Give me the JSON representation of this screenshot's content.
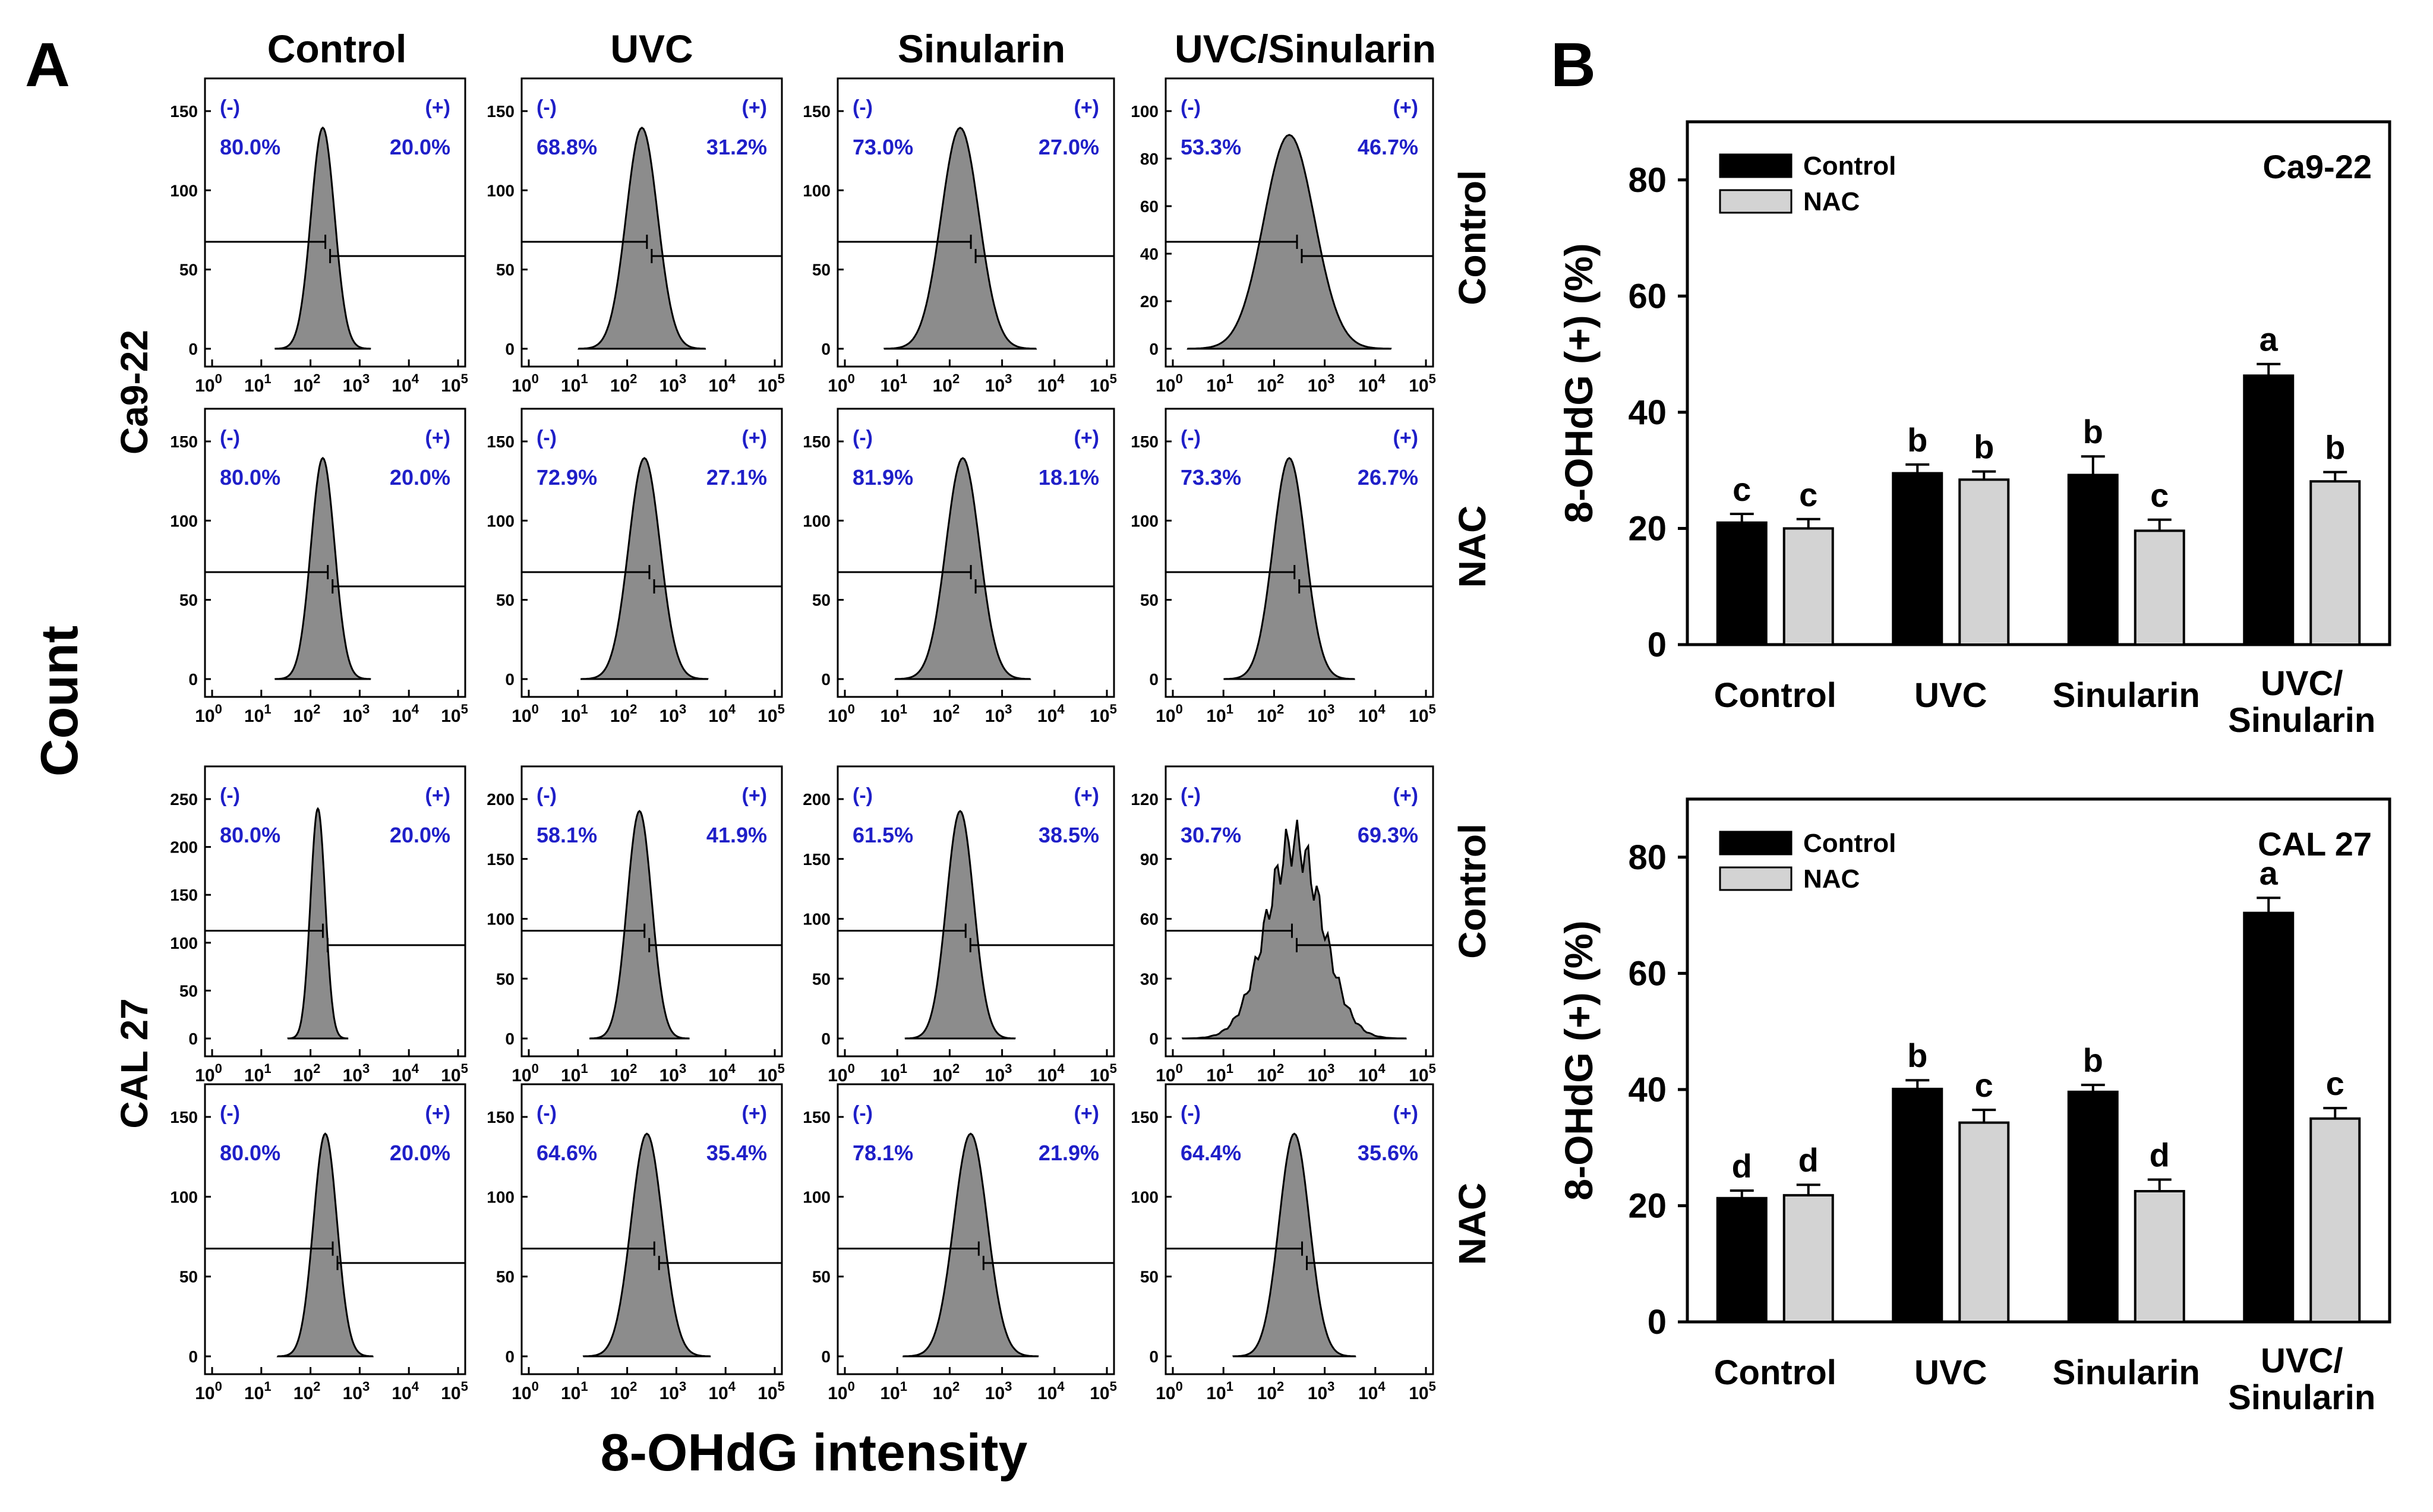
{
  "panel_labels": {
    "a": "A",
    "b": "B"
  },
  "panel_a": {
    "column_headers": [
      "Control",
      "UVC",
      "Sinularin",
      "UVC/Sinularin"
    ],
    "cell_line_labels": [
      "Ca9-22",
      "CAL 27"
    ],
    "row_side_labels": [
      "Control",
      "NAC",
      "Control",
      "NAC"
    ],
    "y_axis_label": "Count",
    "x_axis_label": "8-OHdG intensity",
    "gate_negative_label": "(-)",
    "gate_positive_label": "(+)",
    "x_tick_labels": [
      "10^0",
      "10^1",
      "10^2",
      "10^3",
      "10^4",
      "10^5"
    ],
    "rows": [
      {
        "ymax": 150,
        "yticks": [
          "0",
          "50",
          "100",
          "150"
        ],
        "neg": [
          "80.0%",
          "68.8%",
          "73.0%",
          "53.3%"
        ],
        "pos": [
          "20.0%",
          "31.2%",
          "27.0%",
          "46.7%"
        ]
      },
      {
        "ymax": 150,
        "yticks": [
          "0",
          "50",
          "100",
          "150"
        ],
        "neg": [
          "80.0%",
          "72.9%",
          "81.9%",
          "73.3%"
        ],
        "pos": [
          "20.0%",
          "27.1%",
          "18.1%",
          "26.7%"
        ]
      },
      {
        "ymax": 250,
        "yticks": [
          "0",
          "50",
          "100",
          "150",
          "200",
          "250"
        ],
        "neg": [
          "80.0%",
          "58.1%",
          "61.5%",
          "30.7%"
        ],
        "pos": [
          "20.0%",
          "41.9%",
          "38.5%",
          "69.3%"
        ]
      },
      {
        "ymax": 150,
        "yticks": [
          "0",
          "50",
          "100",
          "150"
        ],
        "neg": [
          "80.0%",
          "64.6%",
          "78.1%",
          "64.4%"
        ],
        "pos": [
          "20.0%",
          "35.4%",
          "21.9%",
          "35.6%"
        ]
      }
    ],
    "special_yticks": {
      "r0c3": [
        "0",
        "20",
        "40",
        "60",
        "80",
        "100"
      ],
      "r2c1": [
        "0",
        "50",
        "100",
        "150",
        "200"
      ],
      "r2c2": [
        "0",
        "50",
        "100",
        "150",
        "200"
      ],
      "r2c3": [
        "0",
        "30",
        "60",
        "90",
        "120"
      ]
    }
  },
  "chart_data": [
    {
      "type": "bar",
      "title": "Ca9-22",
      "categories": [
        "Control",
        "UVC",
        "Sinularin",
        "UVC/\nSinularin"
      ],
      "series": [
        {
          "name": "Control",
          "color": "#000000",
          "values": [
            21,
            29.5,
            29.2,
            46.3
          ],
          "errors": [
            1.5,
            1.5,
            3.2,
            2.0
          ],
          "letters": [
            "c",
            "b",
            "b",
            "a"
          ]
        },
        {
          "name": "NAC",
          "color": "#d3d3d3",
          "values": [
            20,
            28.4,
            19.6,
            28.1
          ],
          "errors": [
            1.6,
            1.4,
            1.9,
            1.6
          ],
          "letters": [
            "c",
            "b",
            "c",
            "b"
          ]
        }
      ],
      "ylabel": "8-OHdG (+) (%)",
      "ylim": [
        0,
        90
      ],
      "yticks": [
        0,
        20,
        40,
        60,
        80
      ]
    },
    {
      "type": "bar",
      "title": "CAL 27",
      "categories": [
        "Control",
        "UVC",
        "Sinularin",
        "UVC/\nSinularin"
      ],
      "series": [
        {
          "name": "Control",
          "color": "#000000",
          "values": [
            21.3,
            40.1,
            39.6,
            70.4
          ],
          "errors": [
            1.3,
            1.5,
            1.2,
            2.6
          ],
          "letters": [
            "d",
            "b",
            "b",
            "a"
          ]
        },
        {
          "name": "NAC",
          "color": "#d3d3d3",
          "values": [
            21.8,
            34.3,
            22.5,
            35.0
          ],
          "errors": [
            1.8,
            2.2,
            2.0,
            1.8
          ],
          "letters": [
            "d",
            "c",
            "d",
            "c"
          ]
        }
      ],
      "ylabel": "8-OHdG (+) (%)",
      "ylim": [
        0,
        90
      ],
      "yticks": [
        0,
        20,
        40,
        60,
        80
      ]
    }
  ]
}
